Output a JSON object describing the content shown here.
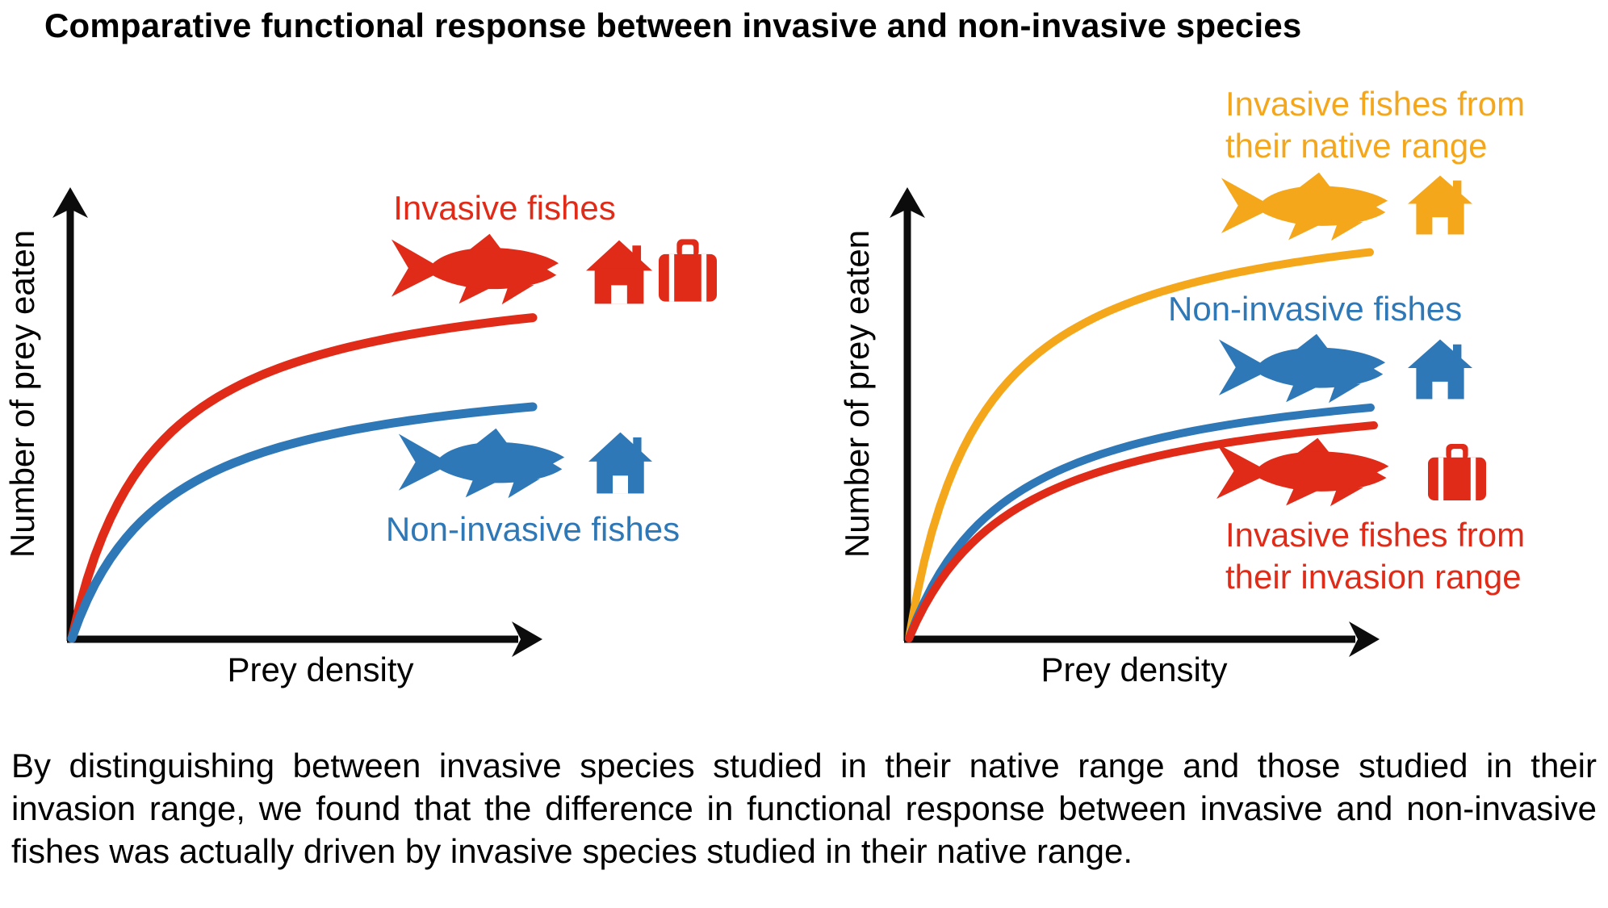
{
  "title": "Comparative functional response between invasive and non-invasive species",
  "caption": "By distinguishing between invasive species studied in their native range and those studied in their invasion range, we found that the difference in functional response between invasive and non-invasive fishes was actually driven by invasive species studied in their native range.",
  "colors": {
    "red": "#E02B18",
    "blue": "#2E78B7",
    "yellow": "#F5A71C",
    "axis": "#0C0C0C"
  },
  "chart_data": [
    {
      "type": "line",
      "panel": "left",
      "title": "",
      "xlabel": "Prey density",
      "ylabel": "Number of prey eaten",
      "grid": false,
      "axes_numeric": false,
      "x_range_relative": [
        0,
        1
      ],
      "y_range_relative": [
        0,
        1
      ],
      "curve_shape": "saturating functional response (Holling type II)",
      "series": [
        {
          "name": "Invasive fishes",
          "label_lines": [
            "Invasive fishes"
          ],
          "color_key": "red",
          "plateau_relative": 0.72,
          "half_saturation_relative": 0.18,
          "icons": [
            "fish",
            "house",
            "suitcase"
          ]
        },
        {
          "name": "Non-invasive fishes",
          "label_lines": [
            "Non-invasive fishes"
          ],
          "color_key": "blue",
          "plateau_relative": 0.52,
          "half_saturation_relative": 0.21,
          "icons": [
            "fish",
            "house"
          ]
        }
      ]
    },
    {
      "type": "line",
      "panel": "right",
      "title": "",
      "xlabel": "Prey density",
      "ylabel": "Number of prey eaten",
      "grid": false,
      "axes_numeric": false,
      "x_range_relative": [
        0,
        1
      ],
      "y_range_relative": [
        0,
        1
      ],
      "curve_shape": "saturating functional response (Holling type II)",
      "series": [
        {
          "name": "Invasive fishes from their native range",
          "label_lines": [
            "Invasive fishes from",
            "their native range"
          ],
          "color_key": "yellow",
          "plateau_relative": 0.87,
          "half_saturation_relative": 0.16,
          "icons": [
            "fish",
            "house"
          ]
        },
        {
          "name": "Non-invasive fishes",
          "label_lines": [
            "Non-invasive fishes"
          ],
          "color_key": "blue",
          "plateau_relative": 0.52,
          "half_saturation_relative": 0.22,
          "icons": [
            "fish",
            "house"
          ]
        },
        {
          "name": "Invasive fishes from their invasion range",
          "label_lines": [
            "Invasive fishes from",
            "their invasion range"
          ],
          "color_key": "red",
          "plateau_relative": 0.48,
          "half_saturation_relative": 0.24,
          "icons": [
            "fish",
            "suitcase"
          ]
        }
      ]
    }
  ]
}
